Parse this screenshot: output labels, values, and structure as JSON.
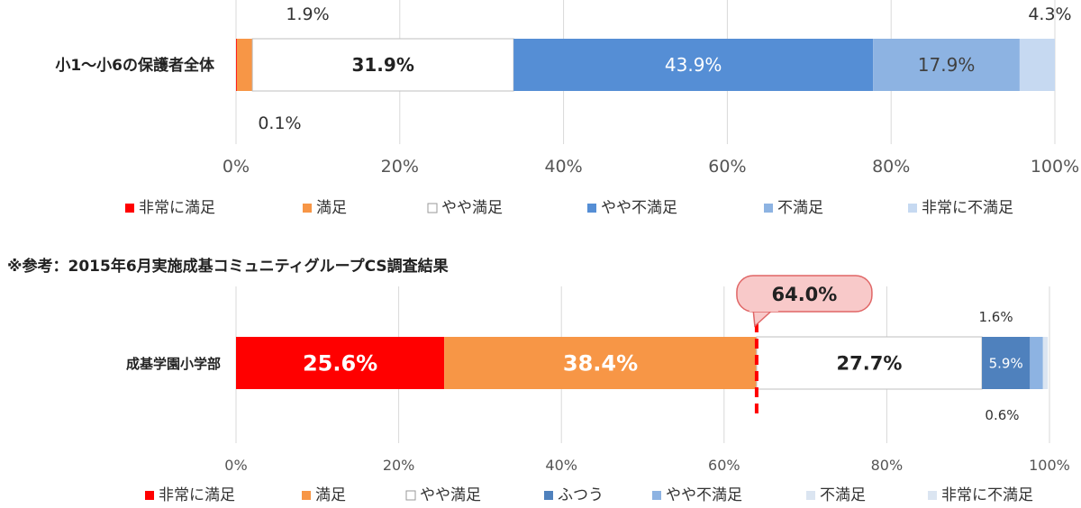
{
  "chart_data": [
    {
      "type": "bar",
      "orientation": "horizontal",
      "stacked": true,
      "categories": [
        "小1～小6の保護者全体"
      ],
      "series": [
        {
          "name": "非常に満足",
          "values": [
            0.1
          ],
          "color": "#ff0000",
          "label": "0.1%"
        },
        {
          "name": "満足",
          "values": [
            1.9
          ],
          "color": "#f79646",
          "label": "1.9%"
        },
        {
          "name": "やや満足",
          "values": [
            31.9
          ],
          "color": "#ffffff",
          "label": "31.9%"
        },
        {
          "name": "やや不満足",
          "values": [
            43.9
          ],
          "color": "#558ed5",
          "label": "43.9%"
        },
        {
          "name": "不満足",
          "values": [
            17.9
          ],
          "color": "#8db3e2",
          "label": "17.9%"
        },
        {
          "name": "非常に不満足",
          "values": [
            4.3
          ],
          "color": "#c6d9f1",
          "label": "4.3%"
        }
      ],
      "xlim": [
        0,
        100
      ],
      "ticks": [
        "0%",
        "20%",
        "40%",
        "60%",
        "80%",
        "100%"
      ],
      "grid": true,
      "legend_position": "bottom"
    },
    {
      "type": "bar",
      "orientation": "horizontal",
      "stacked": true,
      "title": "※参考：2015年6月実施成基コミュニティグループCS調査結果",
      "categories": [
        "成基学園小学部"
      ],
      "series": [
        {
          "name": "非常に満足",
          "values": [
            25.6
          ],
          "color": "#ff0000",
          "label": "25.6%"
        },
        {
          "name": "満足",
          "values": [
            38.4
          ],
          "color": "#f79646",
          "label": "38.4%"
        },
        {
          "name": "やや満足",
          "values": [
            27.7
          ],
          "color": "#ffffff",
          "label": "27.7%"
        },
        {
          "name": "ふつう",
          "values": [
            5.9
          ],
          "color": "#4f81bd",
          "label": "5.9%"
        },
        {
          "name": "やや不満足",
          "values": [
            1.6
          ],
          "color": "#8db3e2",
          "label": "1.6%"
        },
        {
          "name": "不満足",
          "values": [
            0.6
          ],
          "color": "#dbe5f1",
          "label": "0.6%"
        },
        {
          "name": "非常に不満足",
          "values": [
            0
          ],
          "color": "#dbe5f1",
          "label": ""
        }
      ],
      "xlim": [
        0,
        100
      ],
      "ticks": [
        "0%",
        "20%",
        "40%",
        "60%",
        "80%",
        "100%"
      ],
      "grid": true,
      "legend_position": "bottom",
      "annotation": {
        "value": 64.0,
        "label": "64.0%"
      }
    }
  ]
}
